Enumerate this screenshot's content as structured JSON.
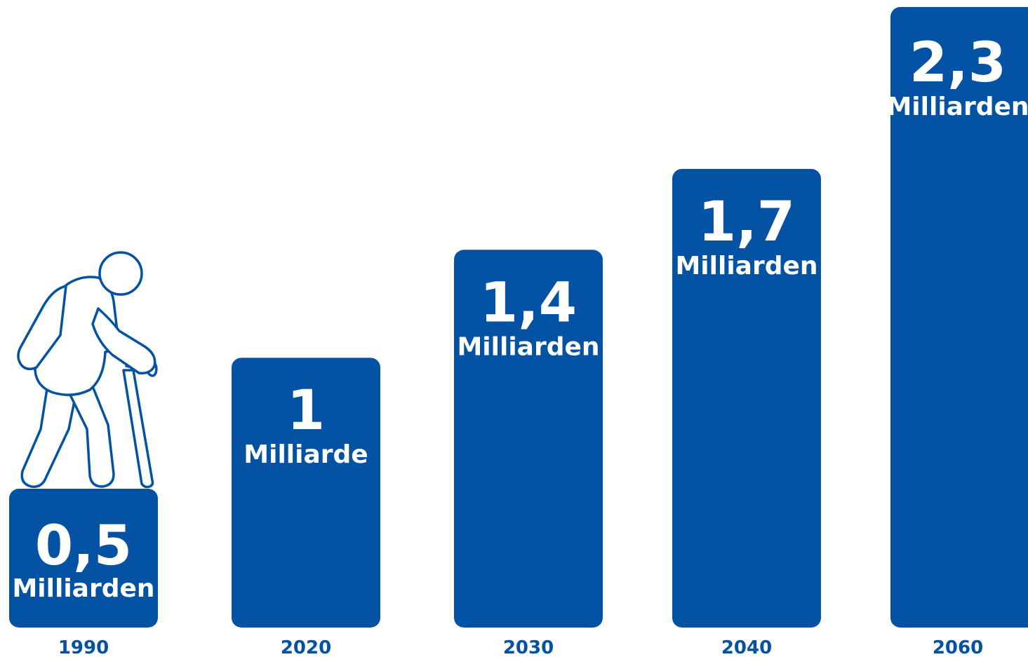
{
  "chart_data": {
    "type": "bar",
    "categories": [
      "1990",
      "2020",
      "2030",
      "2040",
      "2060"
    ],
    "values": [
      0.5,
      1,
      1.4,
      1.7,
      2.3
    ],
    "value_labels": [
      "0,5",
      "1",
      "1,4",
      "1,7",
      "2,3"
    ],
    "unit_labels": [
      "Milliarden",
      "Milliarde",
      "Milliarden",
      "Milliarden",
      "Milliarden"
    ],
    "ylim": [
      0,
      2.3
    ],
    "grid": false,
    "title": "",
    "xlabel": "",
    "ylabel": ""
  },
  "colors": {
    "bar": "#0352a3",
    "text": "#0352a3",
    "figure_stroke": "#0352a3"
  },
  "icons": {
    "decoration": "elderly-person-with-cane-icon"
  }
}
